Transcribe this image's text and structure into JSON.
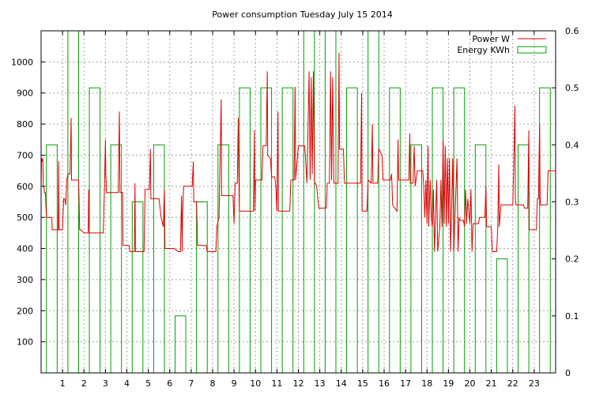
{
  "chart_data": {
    "type": "line",
    "title": "Power consumption Tuesday July 15 2014",
    "xlabel": "",
    "ylabel": "",
    "xlim": [
      0,
      24
    ],
    "ylim": [
      0,
      1100
    ],
    "y2lim": [
      0,
      0.6
    ],
    "x_ticks": [
      "1",
      "2",
      "3",
      "4",
      "5",
      "6",
      "7",
      "8",
      "9",
      "10",
      "11",
      "12",
      "13",
      "14",
      "15",
      "16",
      "17",
      "18",
      "19",
      "20",
      "21",
      "22",
      "23"
    ],
    "y_ticks": [
      "100",
      "200",
      "300",
      "400",
      "500",
      "600",
      "700",
      "800",
      "900",
      "1000"
    ],
    "y2_ticks": [
      "0",
      "0.1",
      "0.2",
      "0.3",
      "0.4",
      "0.5",
      "0.6"
    ],
    "grid": true,
    "legend_position": "top-right",
    "colors": {
      "power": "#dd0000",
      "energy": "#00a000",
      "grid": "#a0a0a0"
    },
    "series": [
      {
        "name": "Power W",
        "axis": "y",
        "style": "line",
        "points": [
          [
            0.0,
            600
          ],
          [
            0.02,
            690
          ],
          [
            0.05,
            680
          ],
          [
            0.08,
            690
          ],
          [
            0.1,
            600
          ],
          [
            0.13,
            600
          ],
          [
            0.15,
            580
          ],
          [
            0.2,
            580
          ],
          [
            0.25,
            500
          ],
          [
            0.5,
            500
          ],
          [
            0.52,
            460
          ],
          [
            0.8,
            460
          ],
          [
            0.82,
            680
          ],
          [
            0.84,
            460
          ],
          [
            1.0,
            460
          ],
          [
            1.05,
            560
          ],
          [
            1.1,
            560
          ],
          [
            1.15,
            540
          ],
          [
            1.2,
            620
          ],
          [
            1.25,
            640
          ],
          [
            1.35,
            640
          ],
          [
            1.4,
            820
          ],
          [
            1.42,
            620
          ],
          [
            1.7,
            620
          ],
          [
            1.75,
            620
          ],
          [
            1.8,
            460
          ],
          [
            1.85,
            460
          ],
          [
            2.0,
            450
          ],
          [
            2.2,
            450
          ],
          [
            2.22,
            590
          ],
          [
            2.25,
            450
          ],
          [
            2.9,
            450
          ],
          [
            2.95,
            580
          ],
          [
            3.0,
            750
          ],
          [
            3.02,
            640
          ],
          [
            3.05,
            580
          ],
          [
            3.6,
            580
          ],
          [
            3.65,
            840
          ],
          [
            3.68,
            580
          ],
          [
            3.8,
            580
          ],
          [
            3.82,
            410
          ],
          [
            4.1,
            410
          ],
          [
            4.15,
            390
          ],
          [
            4.35,
            390
          ],
          [
            4.38,
            610
          ],
          [
            4.4,
            390
          ],
          [
            4.8,
            390
          ],
          [
            4.85,
            590
          ],
          [
            5.05,
            590
          ],
          [
            5.1,
            720
          ],
          [
            5.12,
            560
          ],
          [
            5.5,
            560
          ],
          [
            5.6,
            500
          ],
          [
            5.7,
            470
          ],
          [
            5.75,
            590
          ],
          [
            5.78,
            400
          ],
          [
            6.2,
            400
          ],
          [
            6.4,
            390
          ],
          [
            6.5,
            390
          ],
          [
            6.55,
            570
          ],
          [
            6.58,
            390
          ],
          [
            6.6,
            510
          ],
          [
            6.65,
            600
          ],
          [
            6.9,
            600
          ],
          [
            7.05,
            600
          ],
          [
            7.1,
            680
          ],
          [
            7.12,
            550
          ],
          [
            7.25,
            550
          ],
          [
            7.3,
            410
          ],
          [
            7.7,
            410
          ],
          [
            7.75,
            390
          ],
          [
            8.15,
            390
          ],
          [
            8.2,
            470
          ],
          [
            8.3,
            500
          ],
          [
            8.4,
            880
          ],
          [
            8.42,
            570
          ],
          [
            8.95,
            570
          ],
          [
            9.0,
            480
          ],
          [
            9.05,
            610
          ],
          [
            9.15,
            610
          ],
          [
            9.2,
            820
          ],
          [
            9.22,
            640
          ],
          [
            9.25,
            520
          ],
          [
            9.9,
            520
          ],
          [
            9.95,
            780
          ],
          [
            9.97,
            520
          ],
          [
            10.0,
            620
          ],
          [
            10.3,
            620
          ],
          [
            10.35,
            730
          ],
          [
            10.5,
            730
          ],
          [
            10.55,
            970
          ],
          [
            10.57,
            700
          ],
          [
            10.7,
            690
          ],
          [
            10.75,
            630
          ],
          [
            10.9,
            630
          ],
          [
            10.95,
            600
          ],
          [
            11.0,
            520
          ],
          [
            11.05,
            840
          ],
          [
            11.07,
            520
          ],
          [
            11.6,
            520
          ],
          [
            11.65,
            620
          ],
          [
            11.8,
            620
          ],
          [
            11.85,
            920
          ],
          [
            11.87,
            620
          ],
          [
            12.0,
            730
          ],
          [
            12.3,
            730
          ],
          [
            12.4,
            610
          ],
          [
            12.5,
            970
          ],
          [
            12.55,
            620
          ],
          [
            12.6,
            950
          ],
          [
            12.65,
            640
          ],
          [
            12.7,
            970
          ],
          [
            12.75,
            610
          ],
          [
            12.8,
            610
          ],
          [
            12.85,
            600
          ],
          [
            12.95,
            530
          ],
          [
            13.3,
            530
          ],
          [
            13.35,
            610
          ],
          [
            13.45,
            610
          ],
          [
            13.5,
            970
          ],
          [
            13.55,
            620
          ],
          [
            13.6,
            950
          ],
          [
            13.65,
            610
          ],
          [
            13.85,
            610
          ],
          [
            13.9,
            1030
          ],
          [
            13.92,
            720
          ],
          [
            14.1,
            720
          ],
          [
            14.15,
            610
          ],
          [
            14.9,
            610
          ],
          [
            14.95,
            900
          ],
          [
            14.97,
            520
          ],
          [
            15.2,
            520
          ],
          [
            15.25,
            620
          ],
          [
            15.4,
            610
          ],
          [
            15.45,
            800
          ],
          [
            15.48,
            610
          ],
          [
            15.7,
            610
          ],
          [
            15.75,
            720
          ],
          [
            15.9,
            700
          ],
          [
            15.95,
            620
          ],
          [
            16.3,
            620
          ],
          [
            16.35,
            640
          ],
          [
            16.4,
            540
          ],
          [
            16.6,
            520
          ],
          [
            16.65,
            750
          ],
          [
            16.68,
            620
          ],
          [
            17.15,
            620
          ],
          [
            17.2,
            770
          ],
          [
            17.22,
            610
          ],
          [
            17.35,
            610
          ],
          [
            17.4,
            730
          ],
          [
            17.45,
            600
          ],
          [
            17.55,
            650
          ],
          [
            17.8,
            650
          ],
          [
            17.85,
            600
          ],
          [
            17.9,
            500
          ],
          [
            17.95,
            620
          ],
          [
            18.0,
            480
          ],
          [
            18.05,
            730
          ],
          [
            18.08,
            470
          ],
          [
            18.15,
            620
          ],
          [
            18.2,
            500
          ],
          [
            18.25,
            470
          ],
          [
            18.3,
            590
          ],
          [
            18.35,
            390
          ],
          [
            18.45,
            620
          ],
          [
            18.5,
            390
          ],
          [
            18.6,
            470
          ],
          [
            18.65,
            620
          ],
          [
            18.7,
            470
          ],
          [
            18.75,
            750
          ],
          [
            18.8,
            480
          ],
          [
            18.85,
            730
          ],
          [
            18.9,
            470
          ],
          [
            18.95,
            690
          ],
          [
            19.0,
            480
          ],
          [
            19.05,
            690
          ],
          [
            19.1,
            390
          ],
          [
            19.2,
            690
          ],
          [
            19.25,
            390
          ],
          [
            19.4,
            690
          ],
          [
            19.45,
            390
          ],
          [
            19.5,
            500
          ],
          [
            19.55,
            490
          ],
          [
            19.7,
            490
          ],
          [
            19.75,
            470
          ],
          [
            19.8,
            590
          ],
          [
            19.85,
            480
          ],
          [
            19.9,
            560
          ],
          [
            20.0,
            480
          ],
          [
            20.05,
            590
          ],
          [
            20.1,
            390
          ],
          [
            20.15,
            480
          ],
          [
            20.4,
            480
          ],
          [
            20.45,
            500
          ],
          [
            20.7,
            500
          ],
          [
            20.75,
            600
          ],
          [
            20.78,
            470
          ],
          [
            21.0,
            470
          ],
          [
            21.05,
            390
          ],
          [
            21.25,
            390
          ],
          [
            21.3,
            470
          ],
          [
            21.35,
            670
          ],
          [
            21.37,
            470
          ],
          [
            21.45,
            540
          ],
          [
            21.6,
            540
          ],
          [
            21.8,
            540
          ],
          [
            22.0,
            540
          ],
          [
            22.05,
            680
          ],
          [
            22.1,
            860
          ],
          [
            22.12,
            560
          ],
          [
            22.15,
            540
          ],
          [
            22.5,
            540
          ],
          [
            22.55,
            530
          ],
          [
            22.7,
            530
          ],
          [
            22.75,
            780
          ],
          [
            22.77,
            460
          ],
          [
            23.1,
            460
          ],
          [
            23.15,
            560
          ],
          [
            23.2,
            560
          ],
          [
            23.25,
            800
          ],
          [
            23.28,
            540
          ],
          [
            23.6,
            540
          ],
          [
            23.65,
            650
          ],
          [
            23.9,
            650
          ],
          [
            24.0,
            650
          ]
        ]
      },
      {
        "name": "Energy KWh",
        "axis": "y2",
        "style": "boxes",
        "points": [
          [
            0.5,
            0.4
          ],
          [
            1.5,
            0.6
          ],
          [
            2.5,
            0.5
          ],
          [
            3.5,
            0.4
          ],
          [
            4.5,
            0.3
          ],
          [
            5.5,
            0.4
          ],
          [
            6.5,
            0.1
          ],
          [
            7.5,
            0.3
          ],
          [
            8.5,
            0.4
          ],
          [
            9.5,
            0.5
          ],
          [
            10.5,
            0.5
          ],
          [
            11.5,
            0.5
          ],
          [
            12.5,
            0.6
          ],
          [
            13.5,
            0.6
          ],
          [
            14.5,
            0.5
          ],
          [
            15.5,
            0.6
          ],
          [
            16.5,
            0.5
          ],
          [
            17.5,
            0.4
          ],
          [
            18.5,
            0.5
          ],
          [
            19.5,
            0.5
          ],
          [
            20.5,
            0.4
          ],
          [
            21.5,
            0.2
          ],
          [
            22.5,
            0.4
          ],
          [
            23.5,
            0.5
          ]
        ]
      }
    ]
  }
}
